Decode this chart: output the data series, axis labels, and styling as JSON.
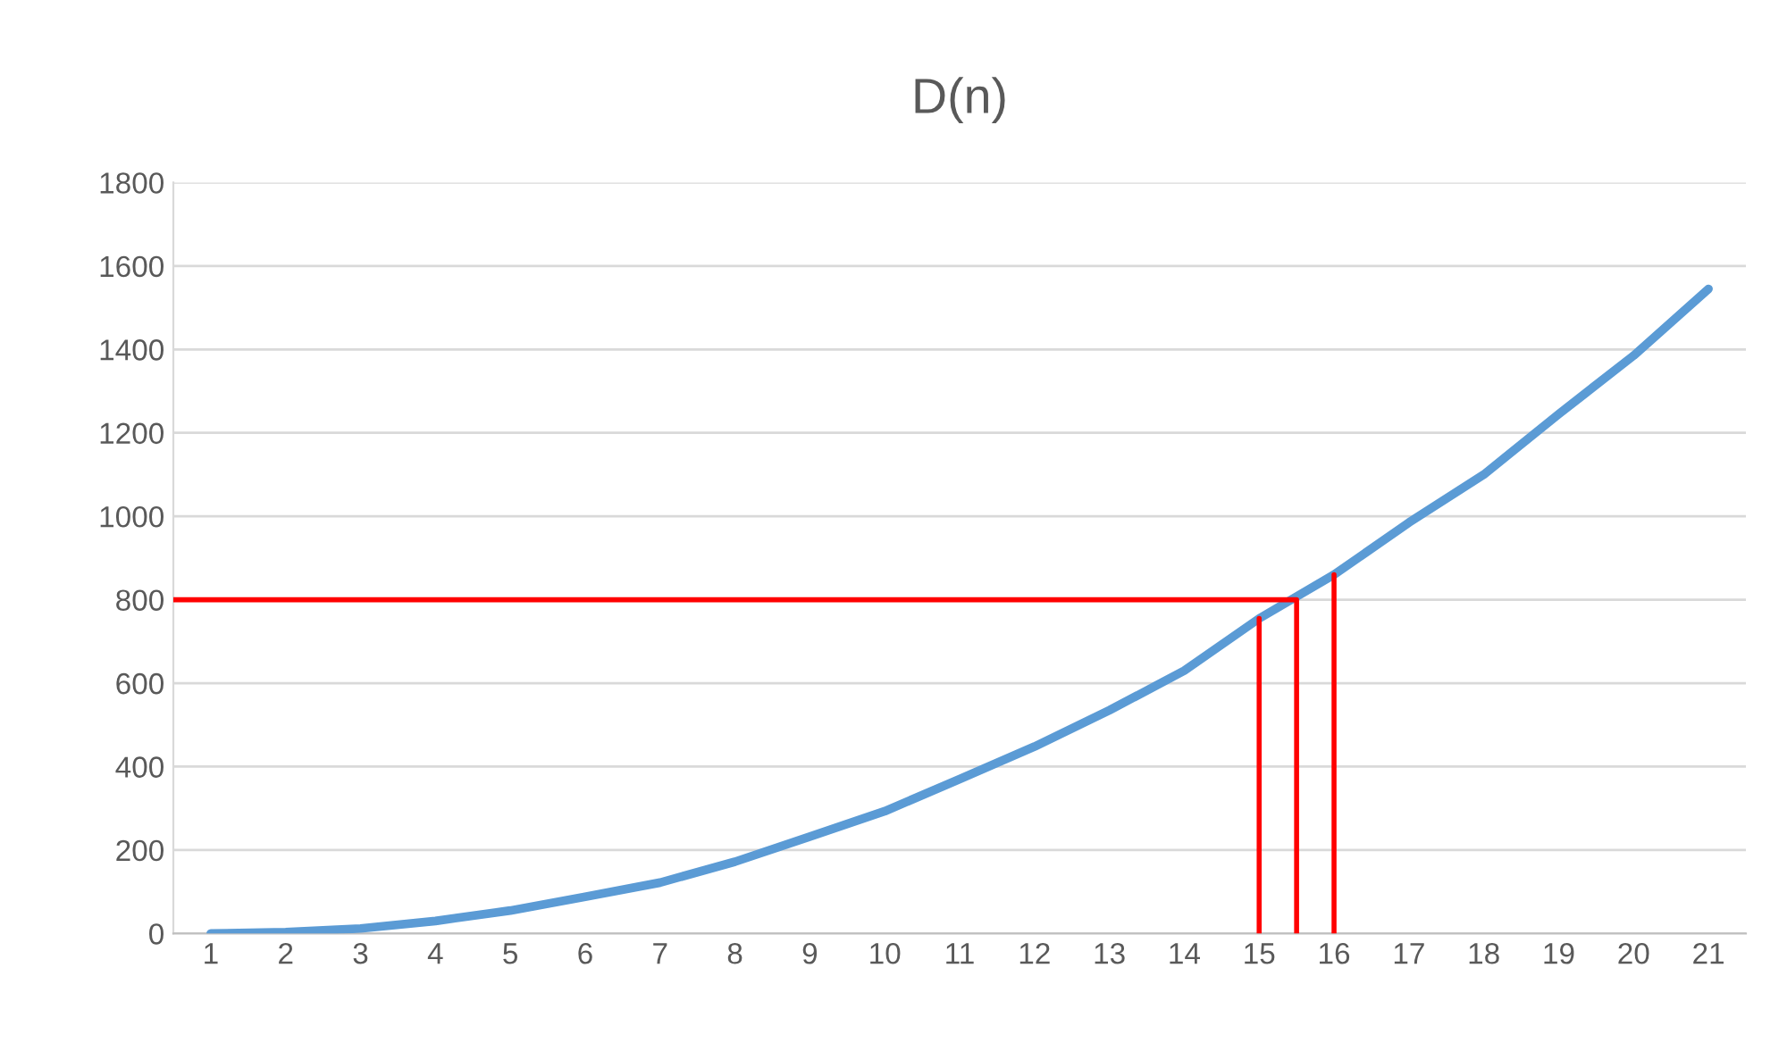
{
  "chart_data": {
    "type": "line",
    "title": "D(n)",
    "x": [
      1,
      2,
      3,
      4,
      5,
      6,
      7,
      8,
      9,
      10,
      11,
      12,
      13,
      14,
      15,
      16,
      17,
      18,
      19,
      20,
      21
    ],
    "series": [
      {
        "color": "#5b9bd5",
        "values": [
          0,
          3,
          12,
          30,
          55,
          88,
          122,
          172,
          232,
          293,
          370,
          448,
          535,
          630,
          755,
          860,
          985,
          1100,
          1245,
          1385,
          1545
        ]
      },
      {
        "color": "#ff0000",
        "x": [
          0.5,
          15.5,
          15.5
        ],
        "values": [
          800,
          800,
          0
        ]
      },
      {
        "color": "#ff0000",
        "x": [
          15,
          15
        ],
        "values": [
          0,
          755
        ]
      },
      {
        "color": "#ff0000",
        "x": [
          16,
          16
        ],
        "values": [
          0,
          860
        ]
      }
    ],
    "xlim": [
      0.5,
      21.5
    ],
    "xticks": [
      1,
      2,
      3,
      4,
      5,
      6,
      7,
      8,
      9,
      10,
      11,
      12,
      13,
      14,
      15,
      16,
      17,
      18,
      19,
      20,
      21
    ],
    "ylim": [
      0,
      1800
    ],
    "yticks": [
      0,
      200,
      400,
      600,
      800,
      1000,
      1200,
      1400,
      1600,
      1800
    ],
    "grid": "y",
    "legend": false,
    "marker": "none",
    "line_style": "solid"
  }
}
